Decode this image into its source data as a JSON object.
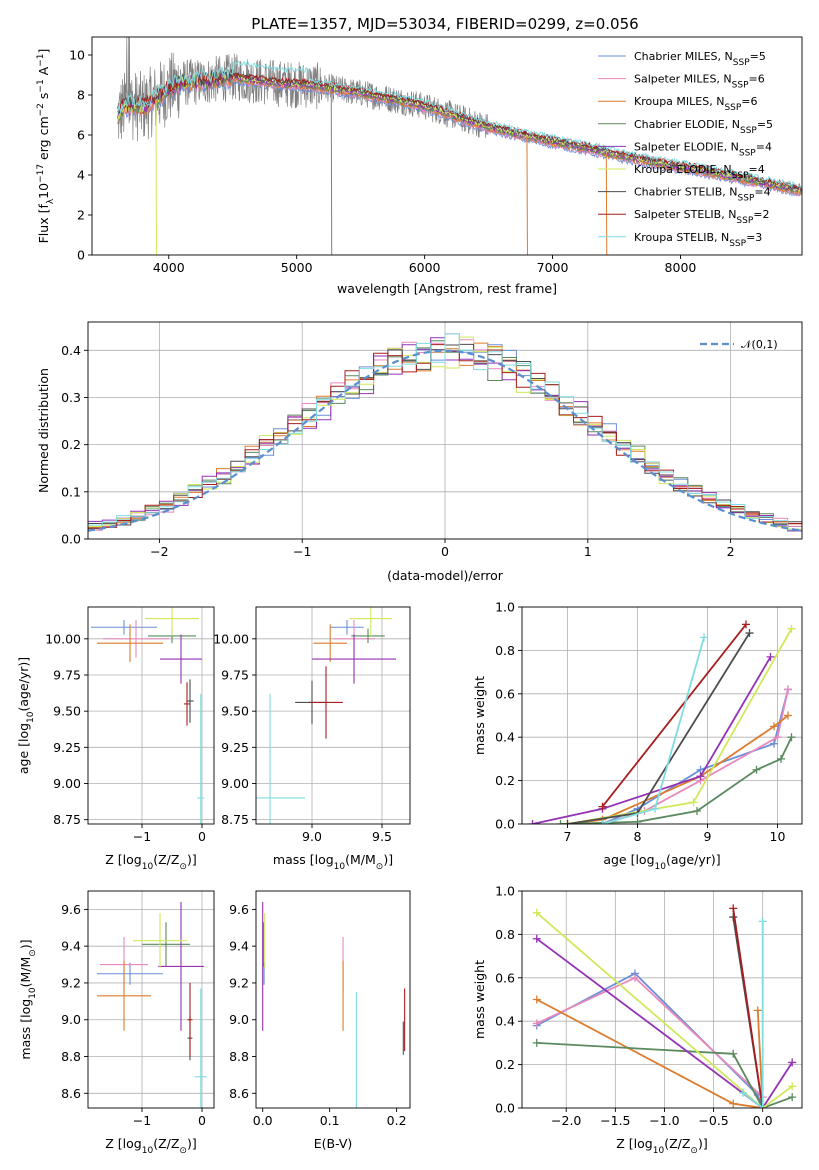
{
  "figure": {
    "title": "PLATE=1357, MJD=53034, FIBERID=0299, z=0.056"
  },
  "models": [
    {
      "name": "Chabrier MILES",
      "nssp": 5,
      "color": "#6a8fd8"
    },
    {
      "name": "Salpeter MILES",
      "nssp": 6,
      "color": "#e889bd"
    },
    {
      "name": "Kroupa MILES",
      "nssp": 6,
      "color": "#dc7c2e"
    },
    {
      "name": "Chabrier ELODIE",
      "nssp": 5,
      "color": "#5b8a5e"
    },
    {
      "name": "Salpeter ELODIE",
      "nssp": 4,
      "color": "#9432b3"
    },
    {
      "name": "Kroupa ELODIE",
      "nssp": 4,
      "color": "#cfe95a"
    },
    {
      "name": "Chabrier STELIB",
      "nssp": 4,
      "color": "#4d4d4d"
    },
    {
      "name": "Salpeter STELIB",
      "nssp": 2,
      "color": "#a71e1e"
    },
    {
      "name": "Kroupa STELIB",
      "nssp": 3,
      "color": "#7fdce0"
    }
  ],
  "legend_nssp_label": "N",
  "legend_nssp_sub": "SSP",
  "chart_data": [
    {
      "id": "spectrum",
      "type": "line",
      "xlabel": "wavelength [Angstrom, rest frame]",
      "ylabel": "Flux [f",
      "ylabel_sub": "λ",
      "ylabel_rest": "10",
      "ylabel_exp": "−17",
      "ylabel_tail": " erg cm",
      "ylabel_exp2": "−2",
      "ylabel_tail2": " s",
      "ylabel_exp3": "−1",
      "ylabel_tail3": " A",
      "ylabel_exp4": "−1",
      "ylabel_end": "]",
      "xlim": [
        3400,
        8950
      ],
      "ylim": [
        0,
        10.9
      ],
      "xticks": [
        "4000",
        "5000",
        "6000",
        "7000",
        "8000"
      ],
      "xtick_values": [
        4000,
        5000,
        6000,
        7000,
        8000
      ],
      "yticks": [
        "0",
        "2",
        "4",
        "6",
        "8",
        "10"
      ],
      "ytick_values": [
        0,
        2,
        4,
        6,
        8,
        10
      ],
      "data_color": "#808080",
      "x_range": [
        3600,
        8950
      ],
      "continuum_knots": [
        [
          3600,
          6.9
        ],
        [
          3650,
          7.4
        ],
        [
          3700,
          7.5
        ],
        [
          3800,
          7.4
        ],
        [
          3900,
          7.8
        ],
        [
          4000,
          8.3
        ],
        [
          4100,
          8.6
        ],
        [
          4300,
          8.7
        ],
        [
          4500,
          8.9
        ],
        [
          4700,
          8.7
        ],
        [
          4900,
          8.55
        ],
        [
          5100,
          8.5
        ],
        [
          5300,
          8.3
        ],
        [
          5500,
          8.1
        ],
        [
          5700,
          7.85
        ],
        [
          5900,
          7.6
        ],
        [
          6100,
          7.25
        ],
        [
          6300,
          6.8
        ],
        [
          6500,
          6.4
        ],
        [
          6700,
          6.1
        ],
        [
          6900,
          5.8
        ],
        [
          7100,
          5.55
        ],
        [
          7300,
          5.3
        ],
        [
          7500,
          5.0
        ],
        [
          7700,
          4.75
        ],
        [
          7900,
          4.5
        ],
        [
          8100,
          4.3
        ],
        [
          8300,
          4.05
        ],
        [
          8500,
          3.8
        ],
        [
          8700,
          3.55
        ],
        [
          8950,
          3.2
        ]
      ],
      "dips": [
        [
          3900,
          0
        ],
        [
          5270,
          0
        ],
        [
          6800,
          0
        ],
        [
          7420,
          0
        ]
      ]
    },
    {
      "id": "residuals",
      "type": "histogram",
      "xlabel": "(data-model)/error",
      "ylabel": "Normed distribution",
      "xlim": [
        -2.5,
        2.5
      ],
      "ylim": [
        0,
        0.46
      ],
      "xticks": [
        "−2",
        "−1",
        "0",
        "1",
        "2"
      ],
      "xtick_values": [
        -2,
        -1,
        0,
        1,
        2
      ],
      "yticks": [
        "0.0",
        "0.1",
        "0.2",
        "0.3",
        "0.4"
      ],
      "ytick_values": [
        0,
        0.1,
        0.2,
        0.3,
        0.4
      ],
      "grid": true,
      "bin_width": 0.1,
      "gaussian_label": "𝒩(0,1)",
      "gaussian_color": "#5b8ed0"
    },
    {
      "id": "age-vs-z",
      "type": "errorbar",
      "xlabel": "Z [log",
      "xlabel_sub": "10",
      "xlabel_rest": "(Z/Z",
      "xlabel_sub2": "⊙",
      "xlabel_end": ")]",
      "ylabel": "age  [log",
      "ylabel_sub": "10",
      "ylabel_rest": "(age/yr)]",
      "xlim": [
        -1.9,
        0.2
      ],
      "ylim": [
        8.72,
        10.22
      ],
      "xticks": [
        "−1",
        "0"
      ],
      "xtick_values": [
        -1,
        0
      ],
      "yticks": [
        "8.75",
        "9.00",
        "9.25",
        "9.50",
        "9.75",
        "10.00"
      ],
      "ytick_values": [
        8.75,
        9.0,
        9.25,
        9.5,
        9.75,
        10.0
      ],
      "grid": true,
      "points": [
        {
          "m": 0,
          "x": -1.3,
          "y": 10.08,
          "xerr": 0.55,
          "yerr": 0.05
        },
        {
          "m": 1,
          "x": -1.1,
          "y": 10.0,
          "xerr": 0.55,
          "yerr": 0.13
        },
        {
          "m": 2,
          "x": -1.2,
          "y": 9.97,
          "xerr": 0.55,
          "yerr": 0.13
        },
        {
          "m": 3,
          "x": -0.5,
          "y": 10.02,
          "xerr": 0.4,
          "yerr": 0.05
        },
        {
          "m": 4,
          "x": -0.35,
          "y": 9.86,
          "xerr": 0.35,
          "yerr": 0.17
        },
        {
          "m": 5,
          "x": -0.5,
          "y": 10.14,
          "xerr": 0.45,
          "yerr": 0.12
        },
        {
          "m": 6,
          "x": -0.2,
          "y": 9.57,
          "xerr": 0.06,
          "yerr": 0.15
        },
        {
          "m": 7,
          "x": -0.25,
          "y": 9.55,
          "xerr": 0.05,
          "yerr": 0.15
        },
        {
          "m": 8,
          "x": -0.02,
          "y": 8.9,
          "xerr": 0.06,
          "yerr": 0.72
        }
      ]
    },
    {
      "id": "age-vs-mass",
      "type": "errorbar",
      "xlabel": "mass [log",
      "xlabel_sub": "10",
      "xlabel_rest": "(M/M",
      "xlabel_sub2": "⊙",
      "xlabel_end": ")]",
      "ylabel": "",
      "xlim": [
        8.6,
        9.7
      ],
      "ylim": [
        8.72,
        10.22
      ],
      "xticks": [
        "9.0",
        "9.5"
      ],
      "xtick_values": [
        9.0,
        9.5
      ],
      "yticks": [
        "8.75",
        "9.00",
        "9.25",
        "9.50",
        "9.75",
        "10.00"
      ],
      "ytick_values": [
        8.75,
        9.0,
        9.25,
        9.5,
        9.75,
        10.0
      ],
      "grid": true,
      "points": [
        {
          "m": 0,
          "x": 9.25,
          "y": 10.08,
          "xerr": 0.12,
          "yerr": 0.05
        },
        {
          "m": 1,
          "x": 9.3,
          "y": 10.0,
          "xerr": 0.15,
          "yerr": 0.13
        },
        {
          "m": 2,
          "x": 9.13,
          "y": 9.97,
          "xerr": 0.12,
          "yerr": 0.13
        },
        {
          "m": 3,
          "x": 9.4,
          "y": 10.02,
          "xerr": 0.12,
          "yerr": 0.05
        },
        {
          "m": 4,
          "x": 9.3,
          "y": 9.86,
          "xerr": 0.3,
          "yerr": 0.17
        },
        {
          "m": 5,
          "x": 9.42,
          "y": 10.14,
          "xerr": 0.15,
          "yerr": 0.12
        },
        {
          "m": 6,
          "x": 9.0,
          "y": 9.56,
          "xerr": 0.12,
          "yerr": 0.15
        },
        {
          "m": 7,
          "x": 9.1,
          "y": 9.56,
          "xerr": 0.12,
          "yerr": 0.25
        },
        {
          "m": 8,
          "x": 8.7,
          "y": 8.9,
          "xerr": 0.25,
          "yerr": 0.72
        }
      ]
    },
    {
      "id": "massweight-vs-age",
      "type": "line",
      "xlabel": "age  [log",
      "xlabel_sub": "10",
      "xlabel_rest": "(age/yr)]",
      "ylabel": "mass weight",
      "xlim": [
        6.35,
        10.35
      ],
      "ylim": [
        0,
        1.0
      ],
      "xticks": [
        "7",
        "8",
        "9",
        "10"
      ],
      "xtick_values": [
        7,
        8,
        9,
        10
      ],
      "yticks": [
        "0.0",
        "0.2",
        "0.4",
        "0.6",
        "0.8",
        "1.0"
      ],
      "ytick_values": [
        0,
        0.2,
        0.4,
        0.6,
        0.8,
        1.0
      ],
      "grid": true,
      "series": [
        {
          "m": 0,
          "x": [
            7.5,
            8.0,
            8.9,
            9.95,
            10.15
          ],
          "y": [
            0.0,
            0.07,
            0.25,
            0.37,
            0.62
          ]
        },
        {
          "m": 1,
          "x": [
            7.5,
            8.1,
            8.9,
            10.0,
            10.15
          ],
          "y": [
            0.0,
            0.06,
            0.2,
            0.4,
            0.62
          ]
        },
        {
          "m": 2,
          "x": [
            7.0,
            7.5,
            8.9,
            9.95,
            10.15
          ],
          "y": [
            0.0,
            0.02,
            0.22,
            0.45,
            0.5
          ]
        },
        {
          "m": 3,
          "x": [
            6.9,
            8.0,
            8.85,
            9.7,
            10.05,
            10.2
          ],
          "y": [
            0.0,
            0.01,
            0.06,
            0.25,
            0.3,
            0.4
          ]
        },
        {
          "m": 4,
          "x": [
            6.5,
            7.5,
            8.9,
            9.9
          ],
          "y": [
            0.0,
            0.07,
            0.22,
            0.77
          ]
        },
        {
          "m": 5,
          "x": [
            7.0,
            8.8,
            10.2
          ],
          "y": [
            0.0,
            0.1,
            0.9
          ]
        },
        {
          "m": 6,
          "x": [
            7.0,
            8.0,
            9.6
          ],
          "y": [
            0.0,
            0.05,
            0.88
          ]
        },
        {
          "m": 7,
          "x": [
            7.5,
            9.55
          ],
          "y": [
            0.08,
            0.92
          ]
        },
        {
          "m": 8,
          "x": [
            7.5,
            8.25,
            8.95
          ],
          "y": [
            0.0,
            0.07,
            0.86
          ]
        }
      ]
    },
    {
      "id": "mass-vs-z",
      "type": "errorbar",
      "xlabel": "Z [log",
      "xlabel_sub": "10",
      "xlabel_rest": "(Z/Z",
      "xlabel_sub2": "⊙",
      "xlabel_end": ")]",
      "ylabel": "mass [log",
      "ylabel_sub": "10",
      "ylabel_rest": "(M/M",
      "ylabel_sub2": "⊙",
      "ylabel_end": ")]",
      "xlim": [
        -1.9,
        0.2
      ],
      "ylim": [
        8.52,
        9.7
      ],
      "xticks": [
        "−1",
        "0"
      ],
      "xtick_values": [
        -1,
        0
      ],
      "yticks": [
        "8.6",
        "8.8",
        "9.0",
        "9.2",
        "9.4",
        "9.6"
      ],
      "ytick_values": [
        8.6,
        8.8,
        9.0,
        9.2,
        9.4,
        9.6
      ],
      "grid": true,
      "points": [
        {
          "m": 0,
          "x": -1.2,
          "y": 9.25,
          "xerr": 0.55,
          "yerr": 0.06
        },
        {
          "m": 1,
          "x": -1.3,
          "y": 9.3,
          "xerr": 0.4,
          "yerr": 0.15
        },
        {
          "m": 2,
          "x": -1.3,
          "y": 9.13,
          "xerr": 0.45,
          "yerr": 0.19
        },
        {
          "m": 3,
          "x": -0.6,
          "y": 9.41,
          "xerr": 0.4,
          "yerr": 0.12
        },
        {
          "m": 4,
          "x": -0.35,
          "y": 9.29,
          "xerr": 0.38,
          "yerr": 0.35
        },
        {
          "m": 5,
          "x": -0.7,
          "y": 9.43,
          "xerr": 0.45,
          "yerr": 0.15
        },
        {
          "m": 6,
          "x": -0.2,
          "y": 8.9,
          "xerr": 0.04,
          "yerr": 0.12
        },
        {
          "m": 7,
          "x": -0.2,
          "y": 9.0,
          "xerr": 0.04,
          "yerr": 0.2
        },
        {
          "m": 8,
          "x": -0.02,
          "y": 8.69,
          "xerr": 0.1,
          "yerr": 0.48
        }
      ]
    },
    {
      "id": "mass-vs-ebv",
      "type": "errorbar",
      "xlabel": "E(B-V)",
      "ylabel": "",
      "xlim": [
        -0.01,
        0.22
      ],
      "ylim": [
        8.52,
        9.7
      ],
      "xticks": [
        "0.0",
        "0.1",
        "0.2"
      ],
      "xtick_values": [
        0,
        0.1,
        0.2
      ],
      "yticks": [
        "8.6",
        "8.8",
        "9.0",
        "9.2",
        "9.4",
        "9.6"
      ],
      "ytick_values": [
        8.6,
        8.8,
        9.0,
        9.2,
        9.4,
        9.6
      ],
      "grid": false,
      "points": [
        {
          "m": 0,
          "x": 0.002,
          "y": 9.25,
          "xerr": 0,
          "yerr": 0.06
        },
        {
          "m": 1,
          "x": 0.12,
          "y": 9.3,
          "xerr": 0,
          "yerr": 0.15
        },
        {
          "m": 2,
          "x": 0.12,
          "y": 9.13,
          "xerr": 0,
          "yerr": 0.19
        },
        {
          "m": 3,
          "x": 0.001,
          "y": 9.41,
          "xerr": 0,
          "yerr": 0.12
        },
        {
          "m": 4,
          "x": 0.0,
          "y": 9.29,
          "xerr": 0,
          "yerr": 0.35
        },
        {
          "m": 5,
          "x": 0.003,
          "y": 9.43,
          "xerr": 0,
          "yerr": 0.15
        },
        {
          "m": 6,
          "x": 0.21,
          "y": 8.9,
          "xerr": 0,
          "yerr": 0.09
        },
        {
          "m": 7,
          "x": 0.212,
          "y": 9.0,
          "xerr": 0,
          "yerr": 0.17
        },
        {
          "m": 8,
          "x": 0.14,
          "y": 8.69,
          "xerr": 0,
          "yerr": 0.46
        }
      ]
    },
    {
      "id": "massweight-vs-z",
      "type": "line",
      "xlabel": "Z [log",
      "xlabel_sub": "10",
      "xlabel_rest": "(Z/Z",
      "xlabel_sub2": "⊙",
      "xlabel_end": ")]",
      "ylabel": "mass weight",
      "xlim": [
        -2.45,
        0.4
      ],
      "ylim": [
        0,
        1.0
      ],
      "xticks": [
        "−2.0",
        "−1.5",
        "−1.0",
        "−0.5",
        "0.0"
      ],
      "xtick_values": [
        -2.0,
        -1.5,
        -1.0,
        -0.5,
        0.0
      ],
      "yticks": [
        "0.0",
        "0.2",
        "0.4",
        "0.6",
        "0.8",
        "1.0"
      ],
      "ytick_values": [
        0,
        0.2,
        0.4,
        0.6,
        0.8,
        1.0
      ],
      "grid": true,
      "series": [
        {
          "m": 0,
          "x": [
            -2.3,
            -1.3,
            -0.05,
            0.0
          ],
          "y": [
            0.38,
            0.62,
            0.06,
            0.0
          ]
        },
        {
          "m": 1,
          "x": [
            -2.3,
            -1.3,
            0.0,
            0.0
          ],
          "y": [
            0.39,
            0.6,
            0.05,
            0.0
          ]
        },
        {
          "m": 2,
          "x": [
            -2.3,
            -0.3,
            0.0,
            -0.05
          ],
          "y": [
            0.5,
            0.02,
            0.0,
            0.45
          ]
        },
        {
          "m": 3,
          "x": [
            -2.3,
            -0.3,
            0.0,
            0.3
          ],
          "y": [
            0.3,
            0.25,
            0.0,
            0.05
          ]
        },
        {
          "m": 4,
          "x": [
            -2.3,
            0.0,
            0.3
          ],
          "y": [
            0.78,
            0.0,
            0.21
          ]
        },
        {
          "m": 5,
          "x": [
            -2.3,
            0.0,
            0.3
          ],
          "y": [
            0.9,
            0.0,
            0.1
          ]
        },
        {
          "m": 6,
          "x": [
            -0.3,
            0.0
          ],
          "y": [
            0.88,
            0.0
          ]
        },
        {
          "m": 7,
          "x": [
            -0.3,
            0.0
          ],
          "y": [
            0.92,
            0.0
          ]
        },
        {
          "m": 8,
          "x": [
            -0.2,
            0.0,
            0.0
          ],
          "y": [
            0.07,
            0.0,
            0.86
          ]
        }
      ]
    }
  ]
}
